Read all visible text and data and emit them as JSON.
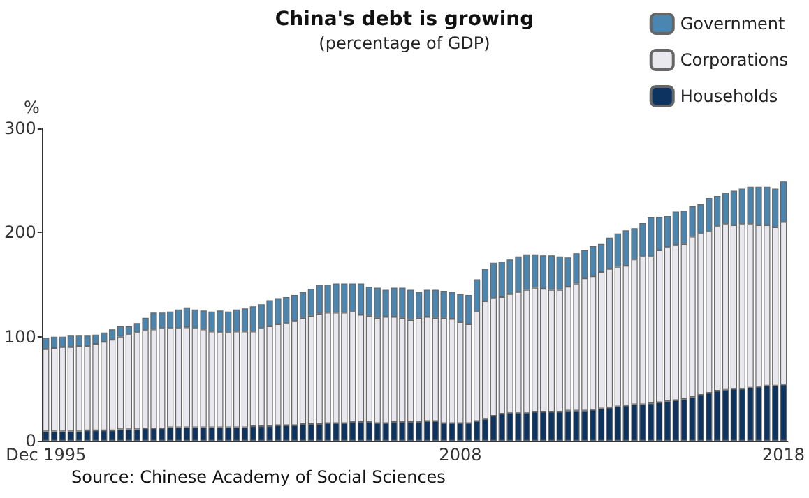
{
  "chart_data": {
    "type": "bar",
    "stacked": true,
    "title": "China's debt is growing",
    "subtitle": "(percentage of GDP)",
    "ylabel": "%",
    "annotations": [
      "Source: Chinese Academy of Social Sciences"
    ],
    "categories": [
      "Dec 1995",
      null,
      null,
      null,
      null,
      null,
      null,
      null,
      null,
      null,
      null,
      null,
      null,
      null,
      null,
      null,
      null,
      null,
      null,
      null,
      null,
      null,
      null,
      null,
      null,
      null,
      null,
      null,
      null,
      null,
      null,
      null,
      null,
      null,
      null,
      null,
      null,
      null,
      null,
      null,
      null,
      null,
      null,
      null,
      null,
      null,
      null,
      null,
      null,
      null,
      "2008",
      null,
      null,
      null,
      null,
      null,
      null,
      null,
      null,
      null,
      null,
      null,
      null,
      null,
      null,
      null,
      null,
      null,
      null,
      null,
      null,
      null,
      null,
      null,
      null,
      null,
      null,
      null,
      null,
      null,
      null,
      null,
      null,
      null,
      null,
      null,
      null,
      null,
      null,
      "2018"
    ],
    "ylim": [
      0,
      300
    ],
    "yticks": [
      0,
      100,
      200,
      300
    ],
    "grid": false,
    "legend": "top right",
    "series": [
      {
        "name": "Households",
        "color": "#0d3461",
        "values": [
          9,
          9,
          9,
          9,
          9,
          10,
          10,
          10,
          10,
          11,
          11,
          11,
          12,
          12,
          12,
          13,
          13,
          13,
          13,
          13,
          13,
          13,
          13,
          13,
          13,
          14,
          14,
          14,
          15,
          15,
          15,
          16,
          16,
          16,
          17,
          17,
          17,
          18,
          18,
          18,
          17,
          17,
          18,
          18,
          18,
          18,
          19,
          19,
          17,
          17,
          17,
          17,
          19,
          21,
          24,
          26,
          27,
          27,
          27,
          28,
          28,
          28,
          28,
          29,
          29,
          29,
          30,
          31,
          32,
          33,
          34,
          35,
          35,
          36,
          37,
          38,
          39,
          40,
          42,
          44,
          46,
          48,
          49,
          50,
          50,
          51,
          52,
          53,
          53,
          54
        ]
      },
      {
        "name": "Corporations",
        "color": "#e8e8ee",
        "values": [
          79,
          80,
          81,
          81,
          82,
          81,
          83,
          85,
          87,
          89,
          91,
          93,
          94,
          95,
          96,
          95,
          95,
          96,
          95,
          94,
          92,
          91,
          91,
          92,
          92,
          91,
          94,
          96,
          97,
          98,
          100,
          102,
          104,
          106,
          106,
          106,
          106,
          106,
          103,
          102,
          101,
          102,
          101,
          100,
          98,
          100,
          100,
          99,
          101,
          100,
          97,
          95,
          105,
          113,
          113,
          112,
          114,
          116,
          118,
          119,
          118,
          117,
          117,
          119,
          122,
          127,
          128,
          131,
          133,
          134,
          134,
          139,
          142,
          141,
          146,
          148,
          149,
          149,
          154,
          155,
          155,
          158,
          159,
          157,
          158,
          157,
          155,
          154,
          152,
          156
        ]
      },
      {
        "name": "Government",
        "color": "#4a86b0",
        "values": [
          11,
          11,
          10,
          11,
          10,
          10,
          9,
          9,
          10,
          10,
          8,
          9,
          12,
          16,
          15,
          16,
          18,
          19,
          18,
          18,
          19,
          21,
          20,
          21,
          22,
          24,
          23,
          25,
          25,
          25,
          25,
          25,
          26,
          28,
          27,
          28,
          28,
          27,
          30,
          28,
          29,
          26,
          28,
          29,
          29,
          25,
          26,
          27,
          26,
          26,
          27,
          28,
          31,
          31,
          34,
          34,
          33,
          34,
          34,
          32,
          32,
          33,
          32,
          28,
          29,
          27,
          29,
          27,
          30,
          32,
          34,
          30,
          32,
          38,
          32,
          30,
          32,
          32,
          29,
          28,
          32,
          29,
          30,
          33,
          34,
          36,
          37,
          37,
          37,
          39
        ]
      }
    ]
  }
}
